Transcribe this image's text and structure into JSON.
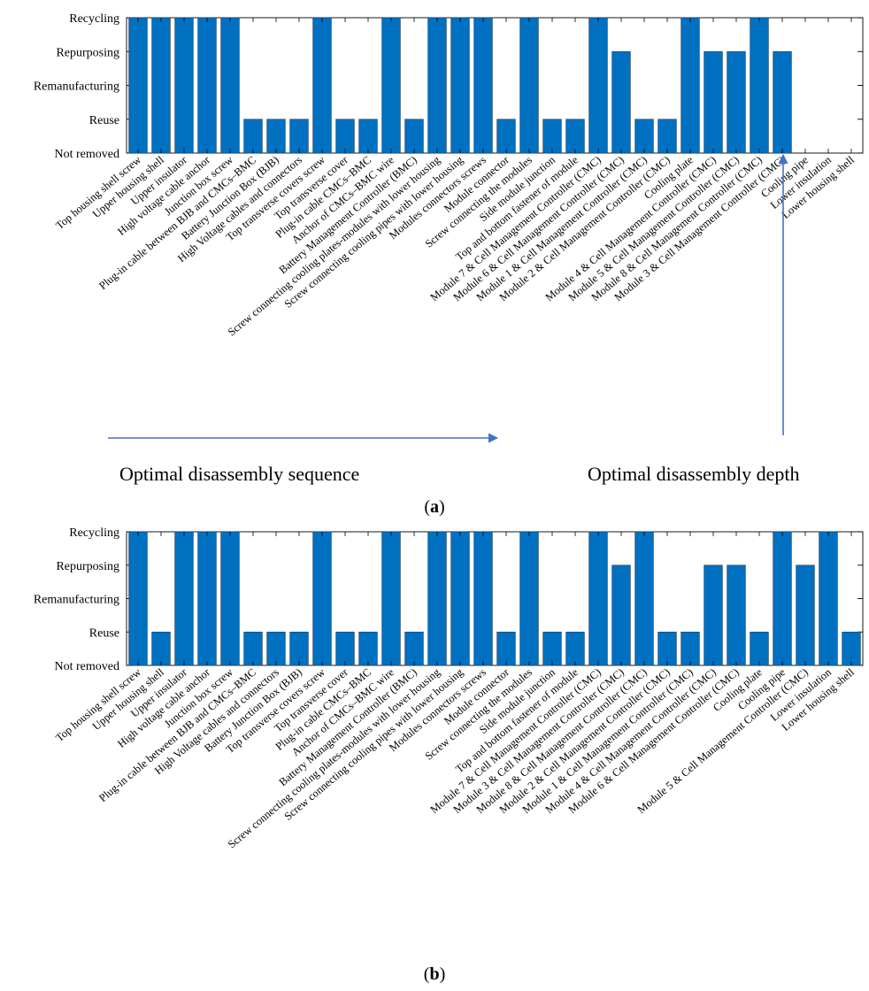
{
  "figure": {
    "annotations": {
      "sequence_label": "Optimal disassembly sequence",
      "depth_label": "Optimal disassembly depth",
      "arrow_color": "#4472c4"
    }
  },
  "chart_data": [
    {
      "type": "bar",
      "panel_label": "a",
      "bar_color": "#0070c0",
      "y_levels": [
        "Not removed",
        "Reuse",
        "Remanufacturing",
        "Repurposing",
        "Recycling"
      ],
      "ylim": [
        0,
        4
      ],
      "grid": false,
      "categories": [
        "Top housing shell screw",
        "Upper housing shell",
        "Upper insulator",
        "High voltage cable anchor",
        "Junction box screw",
        "Plug-in cable between BJB and CMCs–BMC",
        "Battery Junction Box (BJB)",
        "High Voltage cables and connectors",
        "Top transverse covers screw",
        "Top transverse cover",
        "Plug-in cable CMCs–BMC",
        "Anchor of CMCs–BMC wire",
        "Battery Management Controller (BMC)",
        "Screw connecting cooling plates-modules with lower housing",
        "Screw connecting cooling pipes with lower housing",
        "Modules connectors screws",
        "Module connector",
        "Screw connecting the modules",
        "Side module junction",
        "Top and bottom fastener of module",
        "Module 7 & Cell Management Controller (CMC)",
        "Module 6 & Cell Management Controller (CMC)",
        "Module 1 & Cell Management Controller (CMC)",
        "Module 2 & Cell Management Controller (CMC)",
        "Cooling plate",
        "Module 4 & Cell Management Controller (CMC)",
        "Module 5 & Cell Management Controller (CMC)",
        "Module 8 & Cell Management Controller (CMC)",
        "Module 3 & Cell Management Controller (CMC)",
        "Cooling pipe",
        "Lower insulation",
        "Lower housing shell"
      ],
      "values": [
        4,
        4,
        4,
        4,
        4,
        1,
        1,
        1,
        4,
        1,
        1,
        4,
        1,
        4,
        4,
        4,
        1,
        4,
        1,
        1,
        4,
        3,
        1,
        1,
        4,
        3,
        3,
        4,
        3,
        0,
        0,
        0
      ]
    },
    {
      "type": "bar",
      "panel_label": "b",
      "bar_color": "#0070c0",
      "y_levels": [
        "Not removed",
        "Reuse",
        "Remanufacturing",
        "Repurposing",
        "Recycling"
      ],
      "ylim": [
        0,
        4
      ],
      "grid": false,
      "categories": [
        "Top housing shell screw",
        "Upper housing shell",
        "Upper insulator",
        "High voltage cable anchor",
        "Junction box screw",
        "Plug-in cable between BJB and CMCs–BMC",
        "High Voltage cables and connectors",
        "Battery Junction Box (BJB)",
        "Top transverse covers screw",
        "Top transverse cover",
        "Plug-in cable CMCs–BMC",
        "Anchor of CMCs–BMC wire",
        "Battery Management Controller (BMC)",
        "Screw connecting cooling plates-modules with lower housing",
        "Screw connecting cooling pipes with lower housing",
        "Modules connectors screws",
        "Module connector",
        "Screw connecting the modules",
        "Side module junction",
        "Top and bottom fastener of module",
        "Module 7 & Cell Management Controller (CMC)",
        "Module 3 & Cell Management Controller (CMC)",
        "Module 8 & Cell Management Controller (CMC)",
        "Module 2 & Cell Management Controller (CMC)",
        "Module 1 & Cell Management Controller (CMC)",
        "Module 4 & Cell Management Controller (CMC)",
        "Module 6 & Cell Management Controller (CMC)",
        "Cooling plate",
        "Cooling pipe",
        "Module 5 & Cell Management Controller (CMC)",
        "Lower insulation",
        "Lower housing shell"
      ],
      "values": [
        4,
        1,
        4,
        4,
        4,
        1,
        1,
        1,
        4,
        1,
        1,
        4,
        1,
        4,
        4,
        4,
        1,
        4,
        1,
        1,
        4,
        3,
        4,
        1,
        1,
        3,
        3,
        1,
        4,
        3,
        4,
        1
      ]
    }
  ]
}
